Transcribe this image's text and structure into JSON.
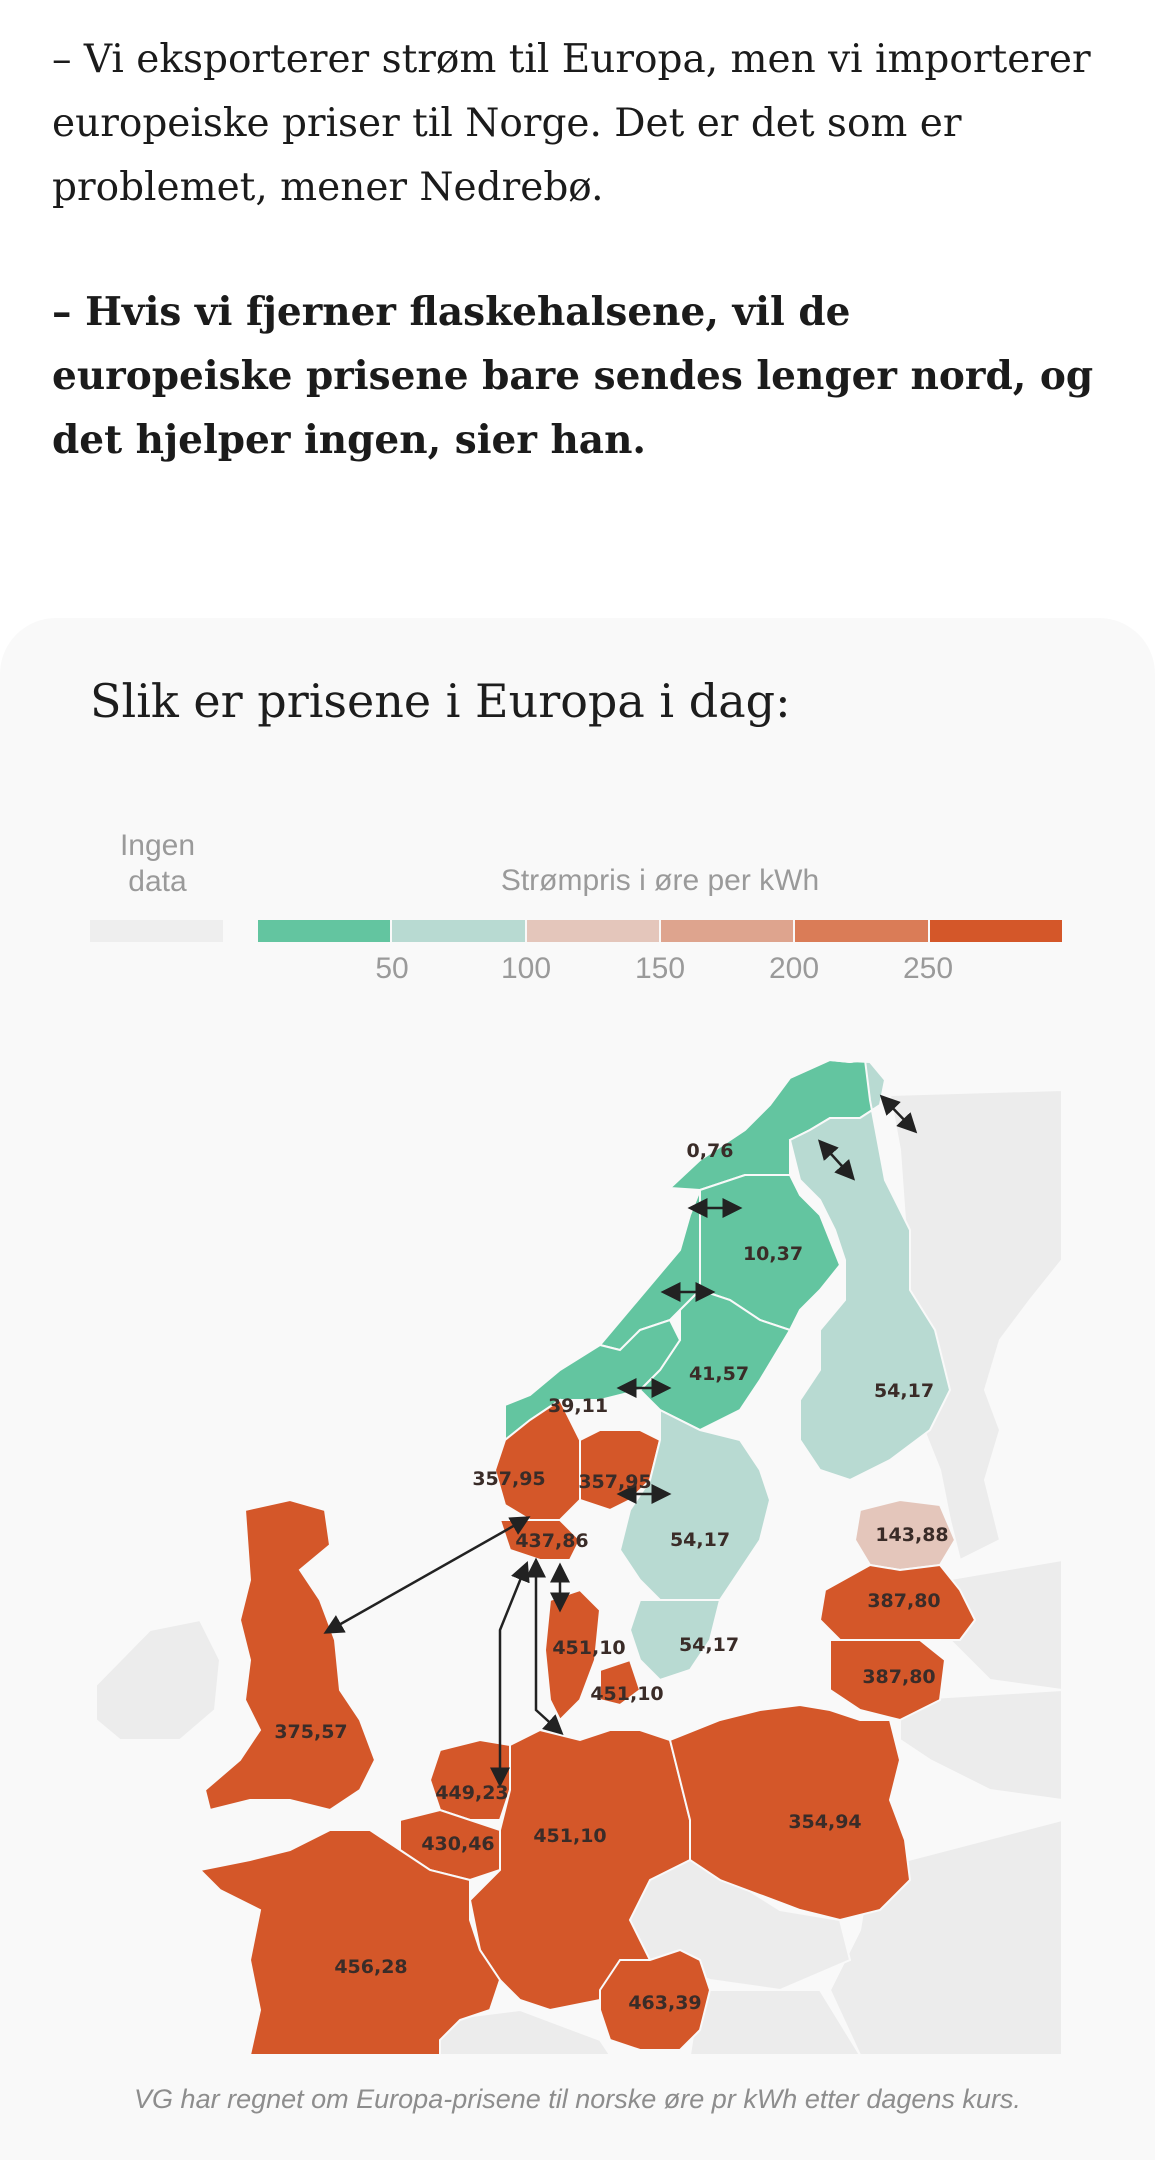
{
  "article": {
    "paragraph_1": "– Vi eksporterer strøm til Europa, men vi importerer europeiske priser til Norge. Det er det som er problemet, mener Nedrebø.",
    "paragraph_2": "– Hvis vi fjerner flaskehalsene, vil de europeiske prisene bare sendes lenger nord, og det hjelper ingen, sier han."
  },
  "map_card": {
    "title": "Slik er prisene i Europa i dag:",
    "no_data_label": "Ingen data",
    "legend_title": "Strømpris i øre per kWh",
    "legend_ticks": [
      "50",
      "100",
      "150",
      "200",
      "250"
    ],
    "legend_colors": [
      "#63c5a0",
      "#b8dad2",
      "#e4c6bb",
      "#dea48e",
      "#da7c57",
      "#d45729"
    ],
    "no_data_color": "#eeeeee",
    "caption": "VG har regnet om Europa-prisene til norske øre pr kWh etter dagens kurs."
  },
  "chart_data": {
    "type": "choropleth map",
    "unit": "øre per kWh",
    "regions": [
      {
        "label": "0,76",
        "value": 0.76
      },
      {
        "label": "10,37",
        "value": 10.37
      },
      {
        "label": "41,57",
        "value": 41.57
      },
      {
        "label": "39,11",
        "value": 39.11
      },
      {
        "label": "54,17",
        "value": 54.17,
        "area": "Finland"
      },
      {
        "label": "54,17",
        "value": 54.17,
        "area": "Sweden SE3"
      },
      {
        "label": "54,17",
        "value": 54.17,
        "area": "Sweden SE4"
      },
      {
        "label": "357,95",
        "value": 357.95,
        "area": "Norway NO2"
      },
      {
        "label": "357,95",
        "value": 357.95,
        "area": "Norway NO1"
      },
      {
        "label": "437,86",
        "value": 437.86
      },
      {
        "label": "143,88",
        "value": 143.88
      },
      {
        "label": "387,80",
        "value": 387.8,
        "area": "Latvia"
      },
      {
        "label": "387,80",
        "value": 387.8,
        "area": "Lithuania"
      },
      {
        "label": "451,10",
        "value": 451.1,
        "area": "Denmark DK1"
      },
      {
        "label": "451,10",
        "value": 451.1,
        "area": "Denmark DK2"
      },
      {
        "label": "375,57",
        "value": 375.57
      },
      {
        "label": "449,23",
        "value": 449.23
      },
      {
        "label": "430,46",
        "value": 430.46
      },
      {
        "label": "451,10",
        "value": 451.1,
        "area": "Germany"
      },
      {
        "label": "354,94",
        "value": 354.94
      },
      {
        "label": "456,28",
        "value": 456.28
      },
      {
        "label": "463,39",
        "value": 463.39
      }
    ]
  }
}
